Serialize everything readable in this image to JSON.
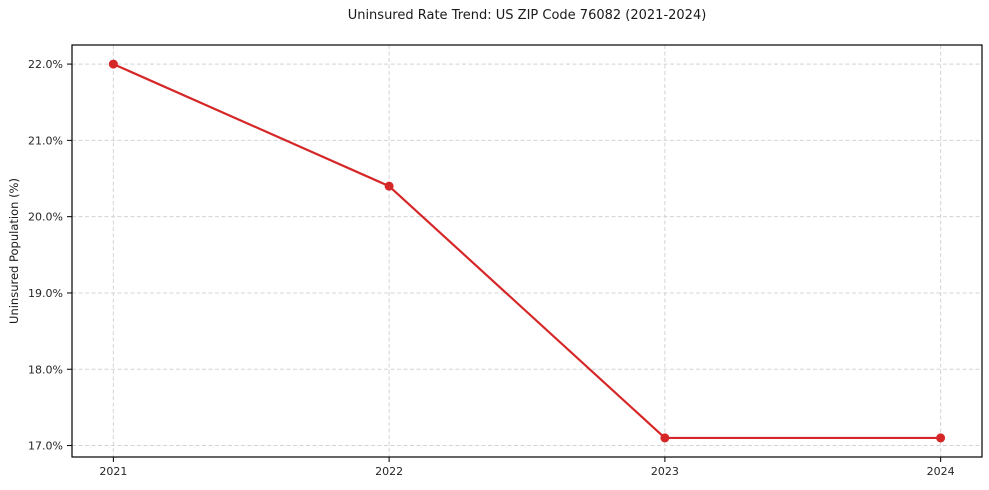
{
  "figure": {
    "background": "#ffffff",
    "border_color": "#000000"
  },
  "chart_data": {
    "type": "line",
    "title": "Uninsured Rate Trend: US ZIP Code 76082 (2021-2024)",
    "xlabel": "",
    "ylabel": "Uninsured Population (%)",
    "x": [
      2021,
      2022,
      2023,
      2024
    ],
    "x_tick_labels": [
      "2021",
      "2022",
      "2023",
      "2024"
    ],
    "series": [
      {
        "name": "uninsured-rate",
        "values": [
          22.0,
          20.4,
          17.1,
          17.1
        ],
        "color": "#d62728",
        "marker": "circle",
        "line_width": 2.2,
        "marker_radius": 4.5
      }
    ],
    "y_ticks": [
      17.0,
      18.0,
      19.0,
      20.0,
      21.0,
      22.0
    ],
    "y_tick_labels": [
      "17.0%",
      "18.0%",
      "19.0%",
      "20.0%",
      "21.0%",
      "22.0%"
    ],
    "ylim": [
      16.85,
      22.25
    ],
    "xlim": [
      2020.85,
      2024.15
    ],
    "grid": "dashed",
    "grid_color": "#d4d4d4",
    "legend": "none"
  }
}
